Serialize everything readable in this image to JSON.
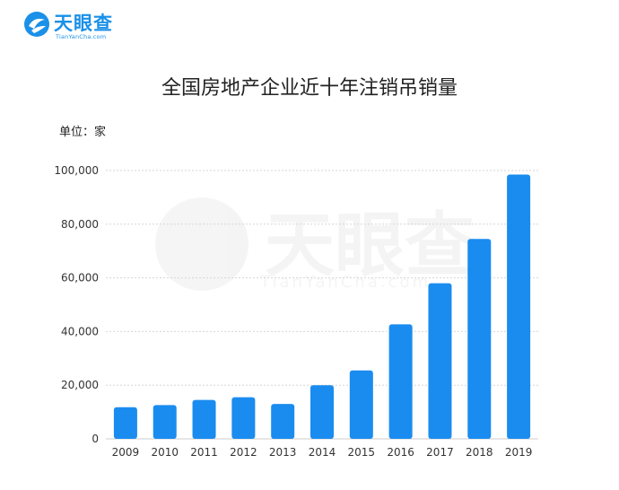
{
  "brand": {
    "name": "天眼查",
    "domain": "TianYanCha.com",
    "color": "#1a90e8"
  },
  "chart_data": {
    "type": "bar",
    "title": "全国房地产企业近十年注销吊销量",
    "unit_label": "单位：家",
    "categories": [
      "2009",
      "2010",
      "2011",
      "2012",
      "2013",
      "2014",
      "2015",
      "2016",
      "2017",
      "2018",
      "2019"
    ],
    "values": [
      11800,
      12600,
      14500,
      15500,
      13000,
      20000,
      25500,
      42700,
      58000,
      74500,
      98500
    ],
    "ylim": [
      0,
      100000
    ],
    "yticks": [
      0,
      20000,
      40000,
      60000,
      80000,
      100000
    ],
    "ytick_labels": [
      "0",
      "20,000",
      "40,000",
      "60,000",
      "80,000",
      "100,000"
    ],
    "grid": true,
    "bar_color": "#1a8cf0"
  }
}
